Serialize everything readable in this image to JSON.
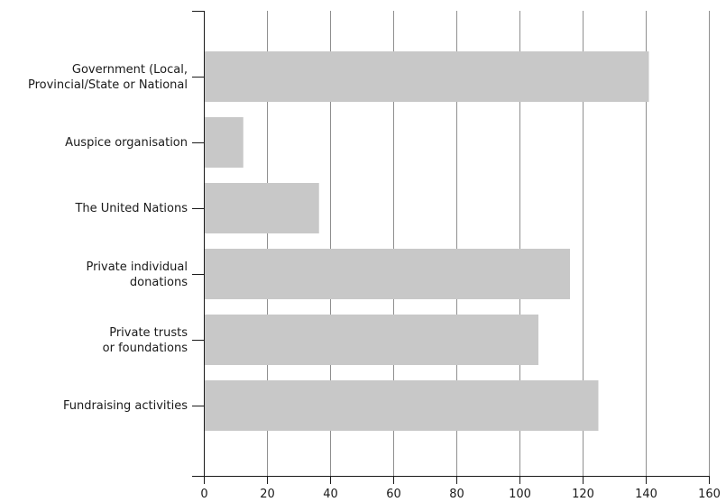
{
  "chart_data": {
    "type": "bar",
    "orientation": "horizontal",
    "title": "",
    "xlabel": "",
    "ylabel": "",
    "xlim": [
      0,
      160
    ],
    "x_ticks": [
      0,
      20,
      40,
      60,
      80,
      100,
      120,
      140,
      160
    ],
    "grid": "vertical",
    "categories": [
      [
        "Government (Local,",
        "Provincial/State or National"
      ],
      [
        "Auspice organisation"
      ],
      [
        "The United Nations"
      ],
      [
        "Private individual",
        "donations"
      ],
      [
        "Private trusts",
        "or foundations"
      ],
      [
        "Fundraising activities"
      ]
    ],
    "values": [
      141,
      12.5,
      36.5,
      116,
      106,
      125
    ],
    "colors": {
      "bar": "#c8c8c8",
      "grid": "#8f8f8f",
      "axis": "#1a1a1a"
    }
  }
}
